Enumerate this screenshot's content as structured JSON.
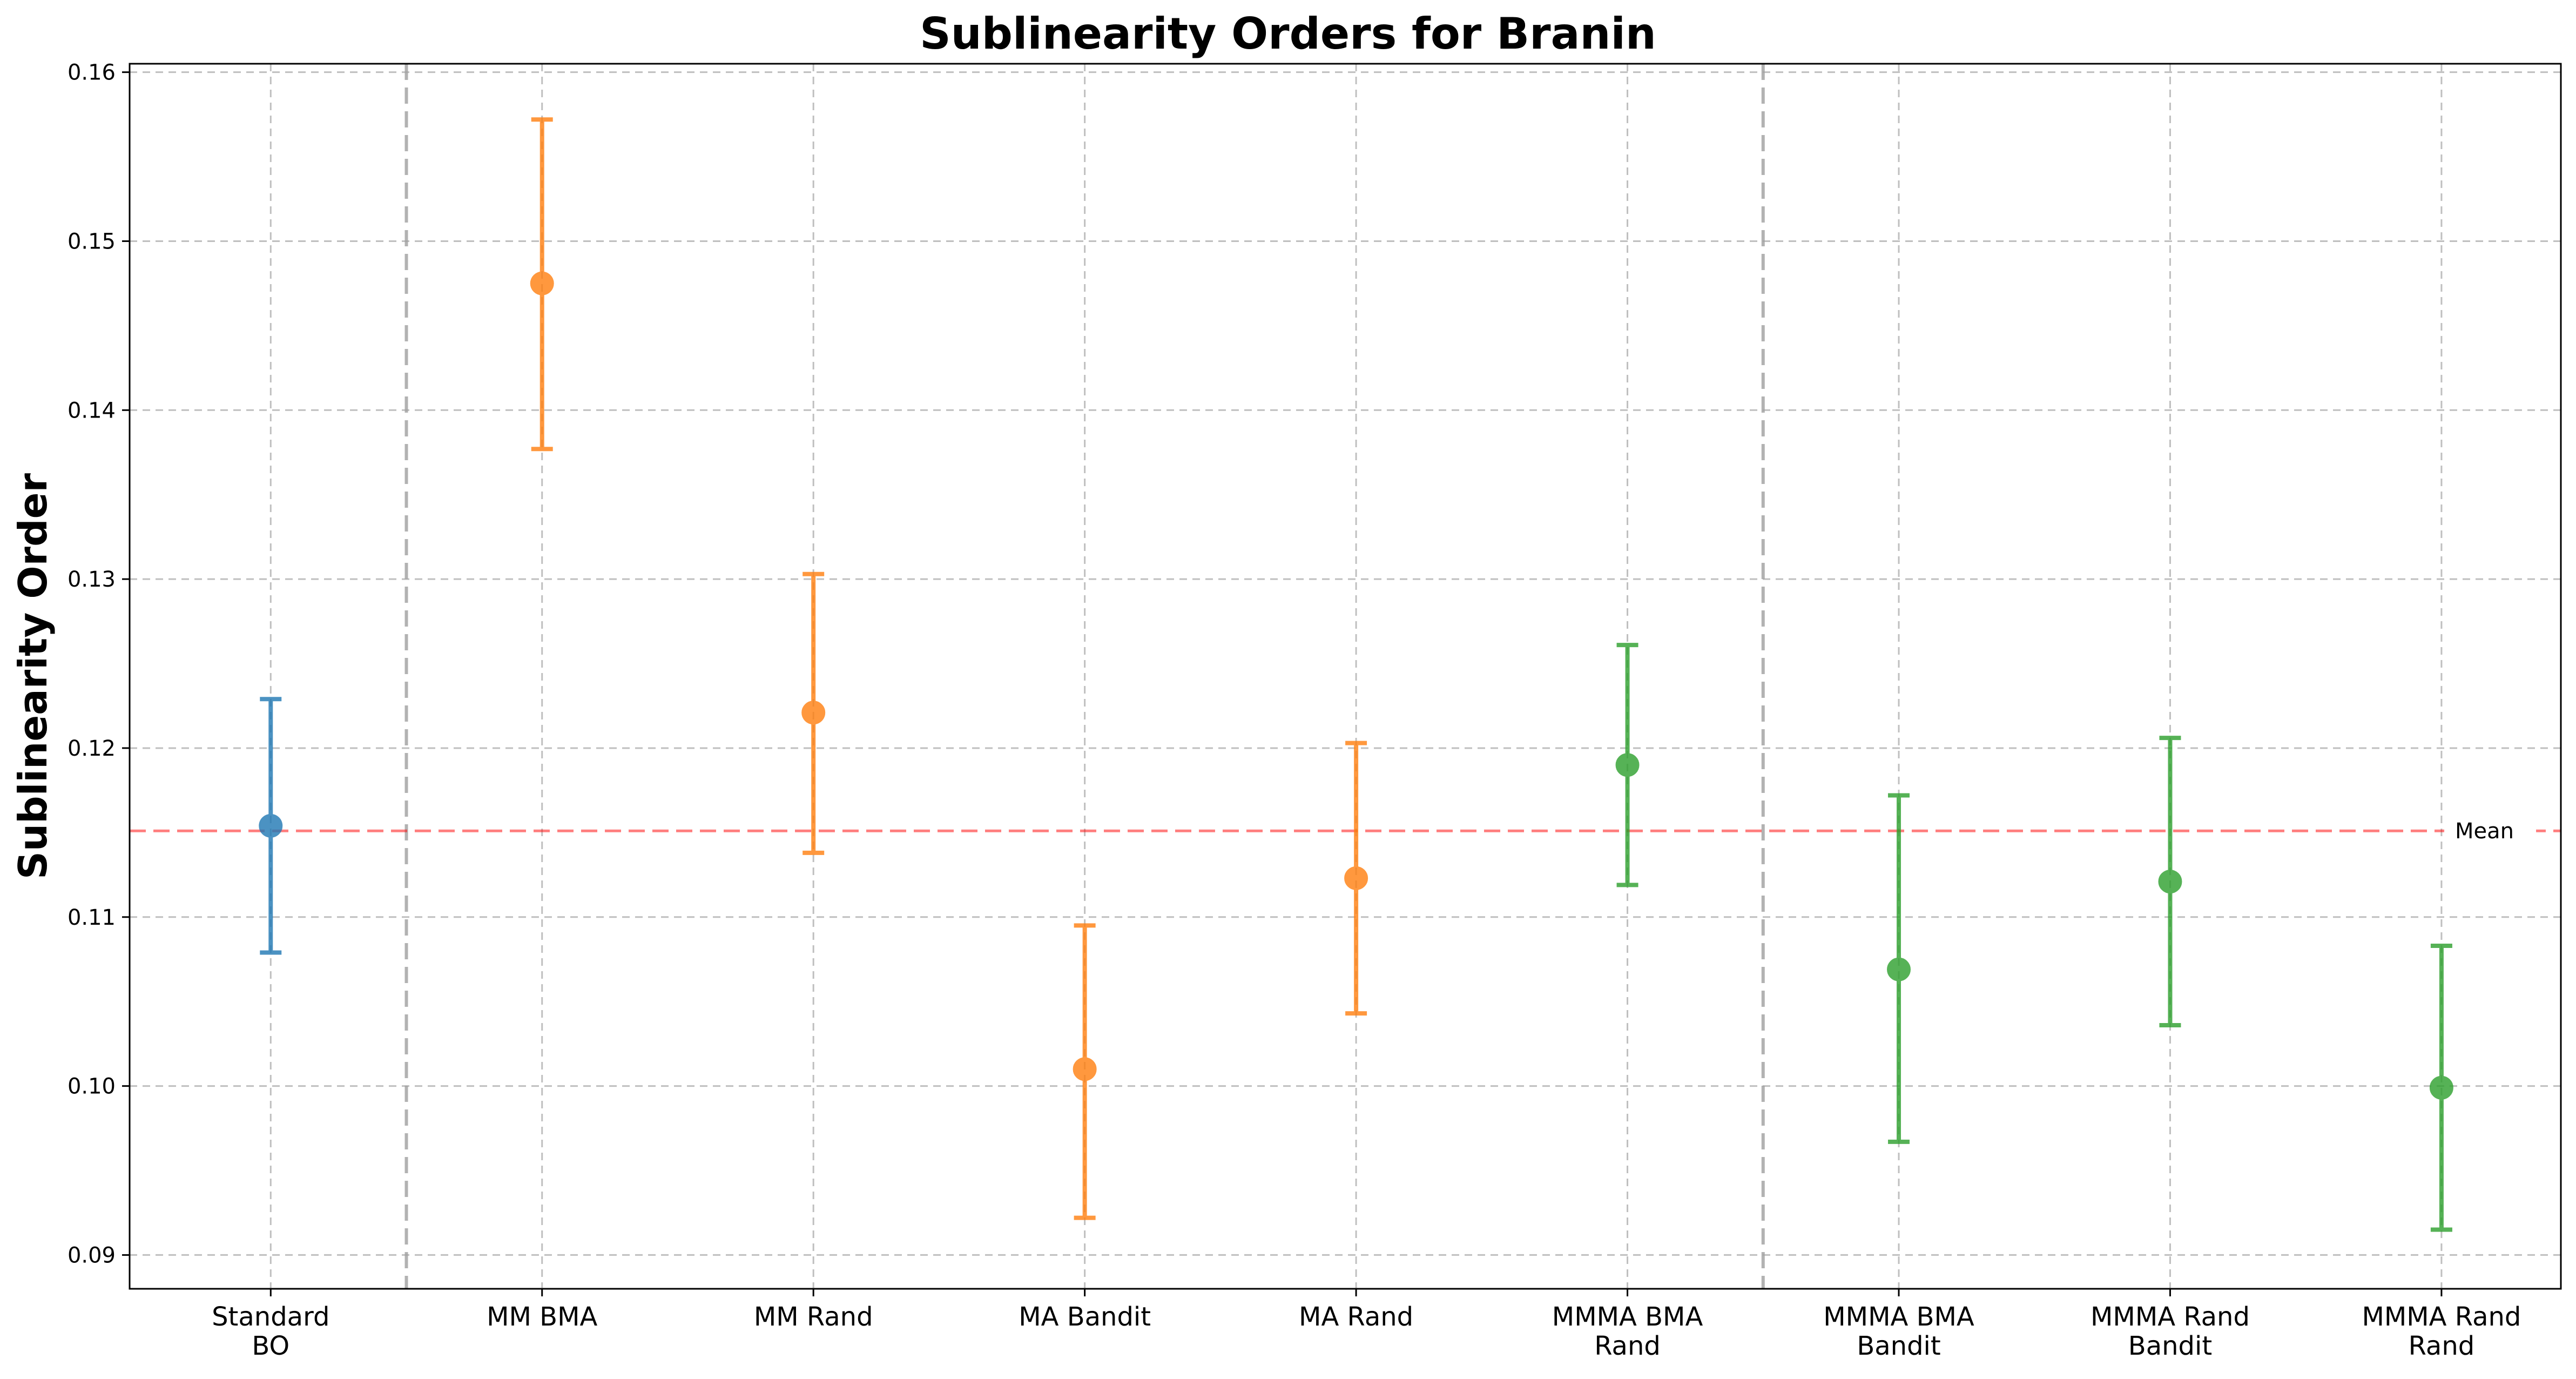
{
  "chart_data": {
    "type": "scatter",
    "title": "Sublinearity Orders for Branin",
    "xlabel": "",
    "ylabel": "Sublinearity Order",
    "ylim": [
      0.088,
      0.1605
    ],
    "yticks": [
      "0.09",
      "0.10",
      "0.11",
      "0.12",
      "0.13",
      "0.14",
      "0.15",
      "0.16"
    ],
    "grid": true,
    "error_bars": true,
    "categories": [
      [
        "Standard",
        "BO"
      ],
      [
        "MM BMA"
      ],
      [
        "MM Rand"
      ],
      [
        "MA Bandit"
      ],
      [
        "MA Rand"
      ],
      [
        "MMMA BMA",
        "Rand"
      ],
      [
        "MMMA BMA",
        "Bandit"
      ],
      [
        "MMMA Rand",
        "Bandit"
      ],
      [
        "MMMA Rand",
        "Rand"
      ]
    ],
    "points": [
      {
        "value": 0.1154,
        "lower": 0.1079,
        "upper": 0.1229,
        "color": "#1f77b4"
      },
      {
        "value": 0.1475,
        "lower": 0.1377,
        "upper": 0.1572,
        "color": "#ff7f0e"
      },
      {
        "value": 0.1221,
        "lower": 0.1138,
        "upper": 0.1303,
        "color": "#ff7f0e"
      },
      {
        "value": 0.101,
        "lower": 0.0922,
        "upper": 0.1095,
        "color": "#ff7f0e"
      },
      {
        "value": 0.1123,
        "lower": 0.1043,
        "upper": 0.1203,
        "color": "#ff7f0e"
      },
      {
        "value": 0.119,
        "lower": 0.1119,
        "upper": 0.1261,
        "color": "#2ca02c"
      },
      {
        "value": 0.1069,
        "lower": 0.0967,
        "upper": 0.1172,
        "color": "#2ca02c"
      },
      {
        "value": 0.1121,
        "lower": 0.1036,
        "upper": 0.1206,
        "color": "#2ca02c"
      },
      {
        "value": 0.0999,
        "lower": 0.0915,
        "upper": 0.1083,
        "color": "#2ca02c"
      }
    ],
    "mean_line": {
      "value": 0.1151,
      "label": "Mean",
      "color": "#ff0000"
    },
    "group_separators_after_index": [
      0,
      5
    ]
  }
}
